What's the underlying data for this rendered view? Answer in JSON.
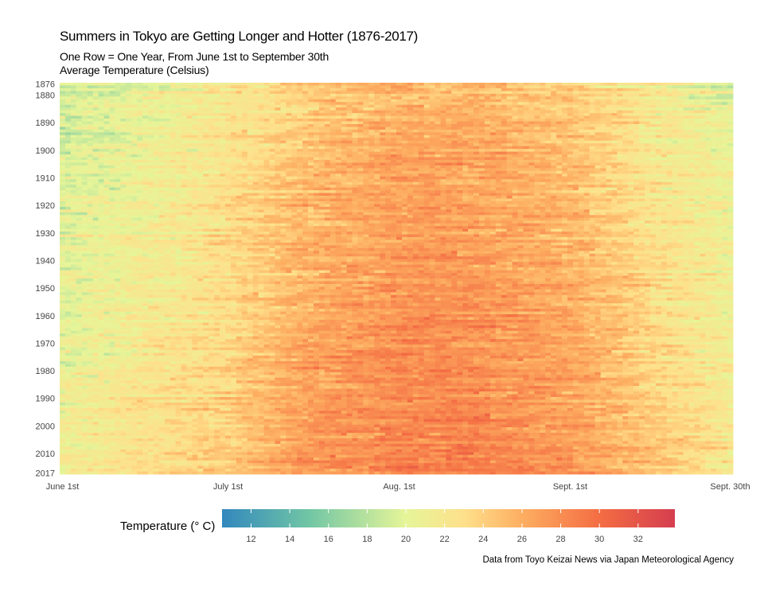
{
  "chart_data": {
    "type": "heatmap",
    "title": "Summers in Tokyo are Getting Longer and Hotter (1876-2017)",
    "subtitle_lines": [
      "One Row = One Year, From June 1st to September 30th",
      "Average Temperature (Celsius)"
    ],
    "y_range": [
      1876,
      2017
    ],
    "y_ticks": [
      1876,
      1880,
      1890,
      1900,
      1910,
      1920,
      1930,
      1940,
      1950,
      1960,
      1970,
      1980,
      1990,
      2000,
      2010,
      2017
    ],
    "x_range": [
      "June 1st",
      "Sept. 30th"
    ],
    "x_ticks": [
      {
        "label": "June 1st",
        "day": 0
      },
      {
        "label": "July 1st",
        "day": 30
      },
      {
        "label": "Aug. 1st",
        "day": 61
      },
      {
        "label": "Sept. 1st",
        "day": 92
      },
      {
        "label": "Sept. 30th",
        "day": 121
      }
    ],
    "days_per_year": 122,
    "approx_mean_temperature_grid": {
      "note_columns_day": [
        0,
        14,
        30,
        44,
        61,
        75,
        92,
        106,
        121
      ],
      "rows": [
        {
          "year": 1876,
          "values": [
            19,
            20.5,
            22,
            24,
            25.5,
            25.5,
            24,
            22,
            20
          ]
        },
        {
          "year": 1900,
          "values": [
            19.5,
            21,
            22.5,
            25,
            26.5,
            26.5,
            25,
            22.5,
            20.5
          ]
        },
        {
          "year": 1925,
          "values": [
            20,
            21,
            23,
            25.5,
            27,
            27,
            25.5,
            23,
            21
          ]
        },
        {
          "year": 1950,
          "values": [
            20,
            21.5,
            23,
            26,
            27.5,
            27.5,
            26,
            23.5,
            21
          ]
        },
        {
          "year": 1975,
          "values": [
            20.5,
            22,
            23.5,
            26.5,
            28,
            28,
            26.5,
            24,
            21.5
          ]
        },
        {
          "year": 2000,
          "values": [
            21,
            22.5,
            24,
            27,
            28.5,
            28.5,
            27,
            24.5,
            22
          ]
        },
        {
          "year": 2017,
          "values": [
            21.5,
            22.5,
            24.5,
            27.5,
            29,
            29,
            27.5,
            25,
            22.5
          ]
        }
      ]
    },
    "legend": {
      "title": "Temperature (° C)",
      "position": "bottom",
      "range": [
        10.5,
        33.9
      ],
      "ticks": [
        12,
        14,
        16,
        18,
        20,
        22,
        24,
        26,
        28,
        30,
        32
      ],
      "colors": [
        {
          "value": 10.5,
          "color": "#3288bd"
        },
        {
          "value": 15,
          "color": "#71c6a5"
        },
        {
          "value": 20,
          "color": "#e6f598"
        },
        {
          "value": 23,
          "color": "#fee08b"
        },
        {
          "value": 26,
          "color": "#fdae61"
        },
        {
          "value": 30,
          "color": "#f46d43"
        },
        {
          "value": 33.9,
          "color": "#d53e4f"
        }
      ]
    },
    "caption": "Data from Toyo Keizai News via Japan Meteorological Agency",
    "grid": false
  }
}
